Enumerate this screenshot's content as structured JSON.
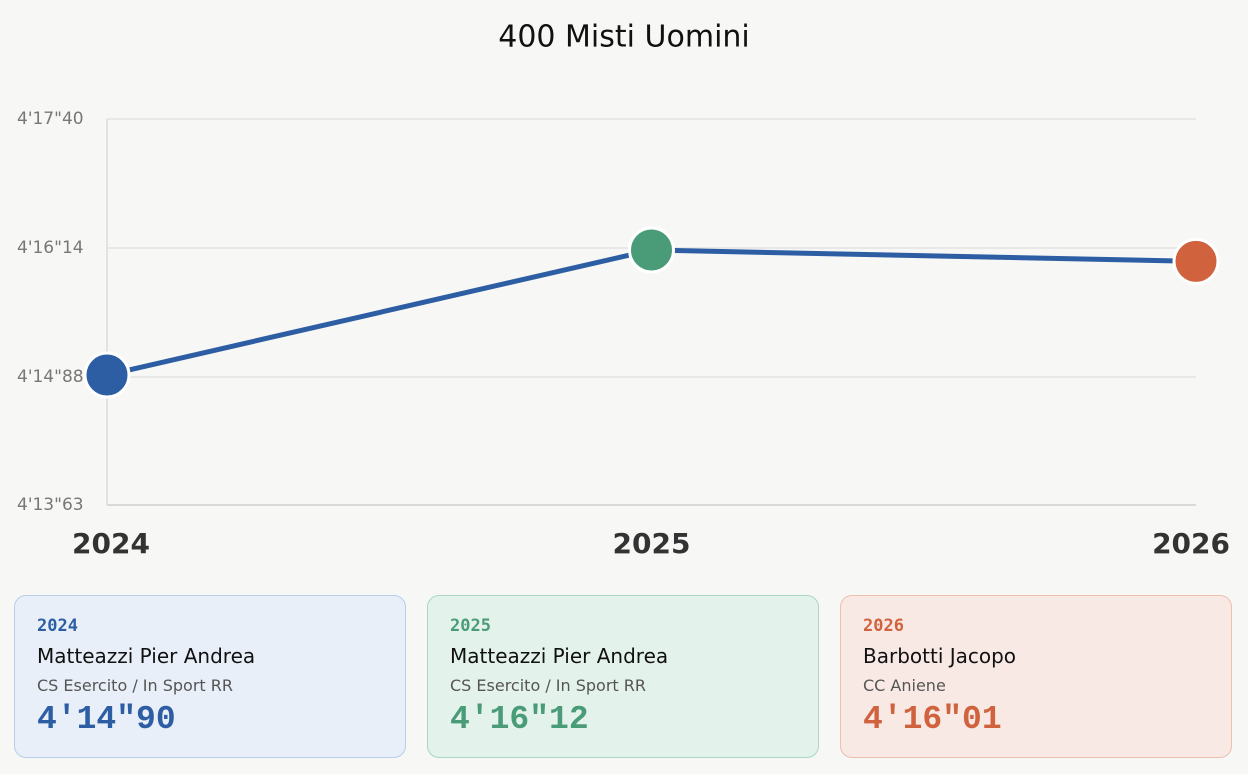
{
  "chart_data": {
    "type": "line",
    "title": "400 Misti Uomini",
    "categories": [
      "2024",
      "2025",
      "2026"
    ],
    "values": [
      254.9,
      256.12,
      256.01
    ],
    "value_labels": [
      "4'14\"90",
      "4'16\"12",
      "4'16\"01"
    ],
    "color": "#2d5ea3",
    "point_colors": [
      "#2d5ea3",
      "#4a9b78",
      "#d0623e"
    ],
    "ylim": [
      253.63,
      257.4
    ],
    "yticks": [
      {
        "value": 253.63,
        "label": "4'13\"63"
      },
      {
        "value": 254.88,
        "label": "4'14\"88"
      },
      {
        "value": 256.14,
        "label": "4'16\"14"
      },
      {
        "value": 257.4,
        "label": "4'17\"40"
      }
    ],
    "grid": true
  },
  "cards": [
    {
      "name": "Matteazzi Pier Andrea",
      "club": "CS Esercito / In Sport RR"
    },
    {
      "name": "Matteazzi Pier Andrea",
      "club": "CS Esercito / In Sport RR"
    },
    {
      "name": "Barbotti Jacopo",
      "club": "CC Aniene"
    }
  ]
}
